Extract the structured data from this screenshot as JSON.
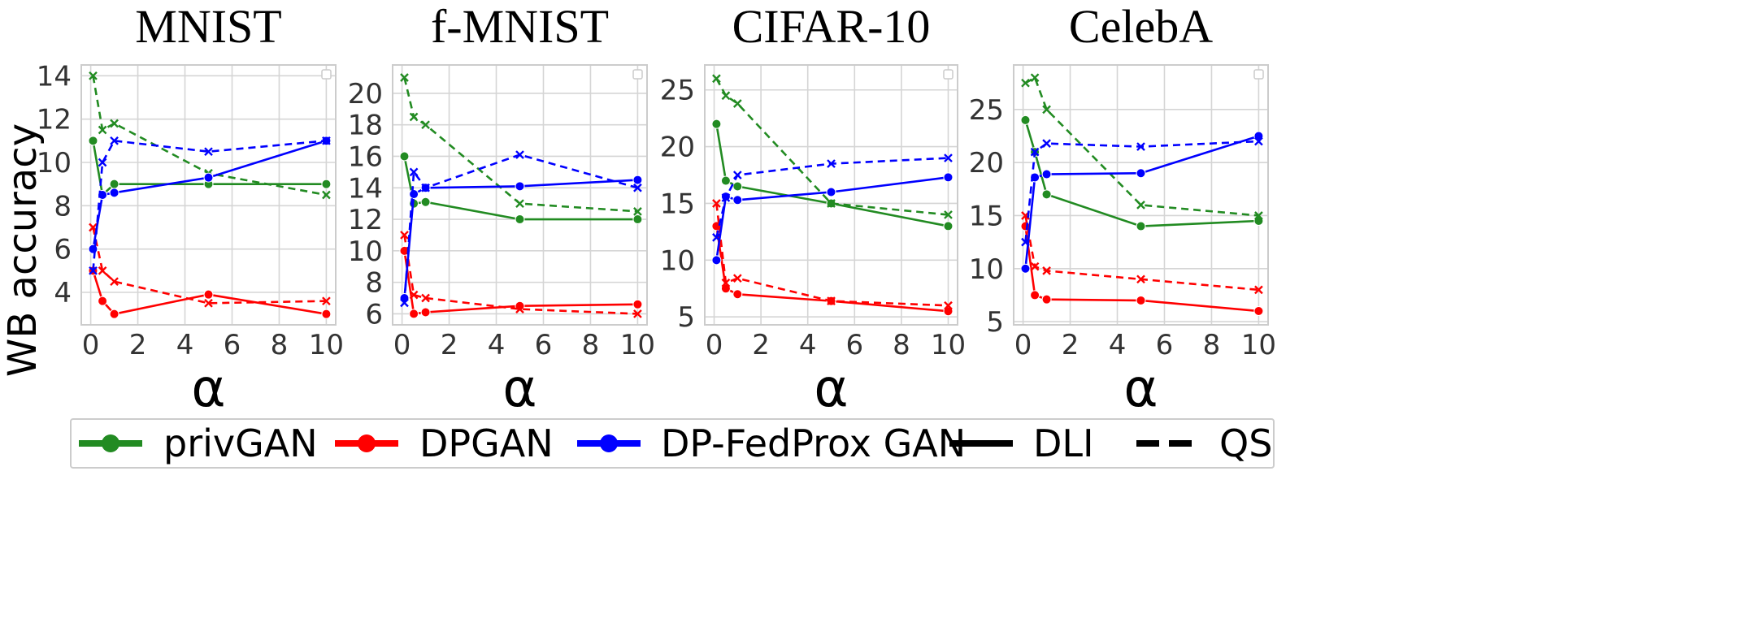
{
  "ylabel": "WB accuracy",
  "legend": {
    "entries": [
      {
        "label": "privGAN",
        "color": "#228b22",
        "style": "series"
      },
      {
        "label": "DPGAN",
        "color": "#ff0000",
        "style": "series"
      },
      {
        "label": "DP-FedProx GAN",
        "color": "#0000ff",
        "style": "series"
      },
      {
        "label": "DLI",
        "color": "#000000",
        "style": "solid"
      },
      {
        "label": "QS",
        "color": "#000000",
        "style": "dashed"
      }
    ]
  },
  "chart_data": [
    {
      "type": "line",
      "title": "MNIST",
      "xlabel": "α",
      "ylabel": "WB accuracy",
      "xlim": [
        -0.4,
        10.4
      ],
      "ylim": [
        2.5,
        14.5
      ],
      "xticks": [
        0,
        2,
        4,
        6,
        8,
        10
      ],
      "yticks": [
        4,
        6,
        8,
        10,
        12,
        14
      ],
      "grid": true,
      "x": [
        0.1,
        0.5,
        1,
        5,
        10
      ],
      "series": [
        {
          "name": "privGAN",
          "metric": "DLI",
          "color": "#228b22",
          "values": [
            11,
            8.5,
            9,
            9,
            9
          ]
        },
        {
          "name": "privGAN",
          "metric": "QS",
          "color": "#228b22",
          "values": [
            14,
            11.5,
            11.8,
            9.5,
            8.5
          ]
        },
        {
          "name": "DPGAN",
          "metric": "DLI",
          "color": "#ff0000",
          "values": [
            5,
            3.6,
            3,
            3.9,
            3
          ]
        },
        {
          "name": "DPGAN",
          "metric": "QS",
          "color": "#ff0000",
          "values": [
            7,
            5,
            4.5,
            3.5,
            3.6
          ]
        },
        {
          "name": "DP-FedProx GAN",
          "metric": "DLI",
          "color": "#0000ff",
          "values": [
            6,
            8.5,
            8.6,
            9.3,
            11
          ]
        },
        {
          "name": "DP-FedProx GAN",
          "metric": "QS",
          "color": "#0000ff",
          "values": [
            5,
            10,
            11,
            10.5,
            11
          ]
        }
      ]
    },
    {
      "type": "line",
      "title": "f-MNIST",
      "xlabel": "α",
      "ylabel": "",
      "xlim": [
        -0.4,
        10.4
      ],
      "ylim": [
        5.3,
        21.8
      ],
      "xticks": [
        0,
        2,
        4,
        6,
        8,
        10
      ],
      "yticks": [
        6,
        8,
        10,
        12,
        14,
        16,
        18,
        20
      ],
      "grid": true,
      "x": [
        0.1,
        0.5,
        1,
        5,
        10
      ],
      "series": [
        {
          "name": "privGAN",
          "metric": "DLI",
          "color": "#228b22",
          "values": [
            16,
            13,
            13.1,
            12,
            12
          ]
        },
        {
          "name": "privGAN",
          "metric": "QS",
          "color": "#228b22",
          "values": [
            21,
            18.5,
            18,
            13,
            12.5
          ]
        },
        {
          "name": "DPGAN",
          "metric": "DLI",
          "color": "#ff0000",
          "values": [
            10,
            6,
            6.1,
            6.5,
            6.6
          ]
        },
        {
          "name": "DPGAN",
          "metric": "QS",
          "color": "#ff0000",
          "values": [
            11,
            7.2,
            7,
            6.3,
            6
          ]
        },
        {
          "name": "DP-FedProx GAN",
          "metric": "DLI",
          "color": "#0000ff",
          "values": [
            7,
            13.6,
            14,
            14.1,
            14.5
          ]
        },
        {
          "name": "DP-FedProx GAN",
          "metric": "QS",
          "color": "#0000ff",
          "values": [
            6.7,
            15,
            14,
            16.1,
            14
          ]
        }
      ]
    },
    {
      "type": "line",
      "title": "CIFAR-10",
      "xlabel": "α",
      "ylabel": "",
      "xlim": [
        -0.4,
        10.4
      ],
      "ylim": [
        4.3,
        27.2
      ],
      "xticks": [
        0,
        2,
        4,
        6,
        8,
        10
      ],
      "yticks": [
        5,
        10,
        15,
        20,
        25
      ],
      "grid": true,
      "x": [
        0.1,
        0.5,
        1,
        5,
        10
      ],
      "series": [
        {
          "name": "privGAN",
          "metric": "DLI",
          "color": "#228b22",
          "values": [
            22,
            17,
            16.5,
            15,
            13
          ]
        },
        {
          "name": "privGAN",
          "metric": "QS",
          "color": "#228b22",
          "values": [
            26,
            24.5,
            23.8,
            15,
            14
          ]
        },
        {
          "name": "DPGAN",
          "metric": "DLI",
          "color": "#ff0000",
          "values": [
            13,
            7.5,
            7,
            6.4,
            5.5
          ]
        },
        {
          "name": "DPGAN",
          "metric": "QS",
          "color": "#ff0000",
          "values": [
            15,
            8,
            8.4,
            6.4,
            6
          ]
        },
        {
          "name": "DP-FedProx GAN",
          "metric": "DLI",
          "color": "#0000ff",
          "values": [
            10,
            15.6,
            15.3,
            16,
            17.3
          ]
        },
        {
          "name": "DP-FedProx GAN",
          "metric": "QS",
          "color": "#0000ff",
          "values": [
            12,
            15.5,
            17.5,
            18.5,
            19
          ]
        }
      ]
    },
    {
      "type": "line",
      "title": "CelebA",
      "xlabel": "α",
      "ylabel": "",
      "xlim": [
        -0.4,
        10.4
      ],
      "ylim": [
        4.7,
        29.2
      ],
      "xticks": [
        0,
        2,
        4,
        6,
        8,
        10
      ],
      "yticks": [
        5,
        10,
        15,
        20,
        25
      ],
      "grid": true,
      "x": [
        0.1,
        0.5,
        1,
        5,
        10
      ],
      "series": [
        {
          "name": "privGAN",
          "metric": "DLI",
          "color": "#228b22",
          "values": [
            24,
            21,
            17,
            14,
            14.5
          ]
        },
        {
          "name": "privGAN",
          "metric": "QS",
          "color": "#228b22",
          "values": [
            27.5,
            28,
            25,
            16,
            15
          ]
        },
        {
          "name": "DPGAN",
          "metric": "DLI",
          "color": "#ff0000",
          "values": [
            14,
            7.5,
            7.1,
            7,
            6
          ]
        },
        {
          "name": "DPGAN",
          "metric": "QS",
          "color": "#ff0000",
          "values": [
            15,
            10.2,
            9.8,
            9,
            8
          ]
        },
        {
          "name": "DP-FedProx GAN",
          "metric": "DLI",
          "color": "#0000ff",
          "values": [
            10,
            18.6,
            18.9,
            19,
            22.5
          ]
        },
        {
          "name": "DP-FedProx GAN",
          "metric": "QS",
          "color": "#0000ff",
          "values": [
            12.5,
            21,
            21.8,
            21.5,
            22
          ]
        }
      ]
    }
  ]
}
